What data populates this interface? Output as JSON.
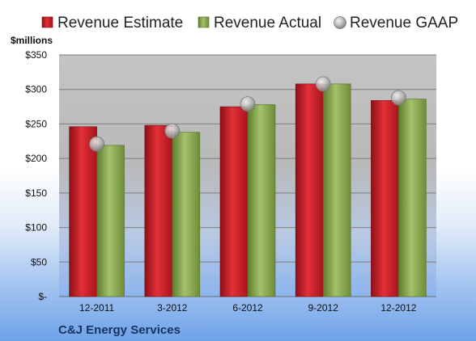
{
  "chart_data": {
    "type": "bar",
    "ylabel": "$millions",
    "ylim": [
      0,
      350
    ],
    "yticks": [
      {
        "value": 0,
        "label": "$-"
      },
      {
        "value": 50,
        "label": "$50"
      },
      {
        "value": 100,
        "label": "$100"
      },
      {
        "value": 150,
        "label": "$150"
      },
      {
        "value": 200,
        "label": "$200"
      },
      {
        "value": 250,
        "label": "$250"
      },
      {
        "value": 300,
        "label": "$300"
      },
      {
        "value": 350,
        "label": "$350"
      }
    ],
    "categories": [
      "12-2011",
      "3-2012",
      "6-2012",
      "9-2012",
      "12-2012"
    ],
    "series": [
      {
        "name": "Revenue Estimate",
        "kind": "bar",
        "color": "#d0202a",
        "values": [
          246,
          248,
          275,
          308,
          284
        ]
      },
      {
        "name": "Revenue Actual",
        "kind": "bar",
        "color": "#8fad55",
        "values": [
          219,
          238,
          278,
          308,
          286
        ]
      },
      {
        "name": "Revenue GAAP",
        "kind": "marker",
        "color": "#a9a9a9",
        "values": [
          221,
          240,
          279,
          308,
          288
        ]
      }
    ],
    "grid": true,
    "legend_position": "top"
  },
  "footer": {
    "company": "C&J Energy Services"
  }
}
